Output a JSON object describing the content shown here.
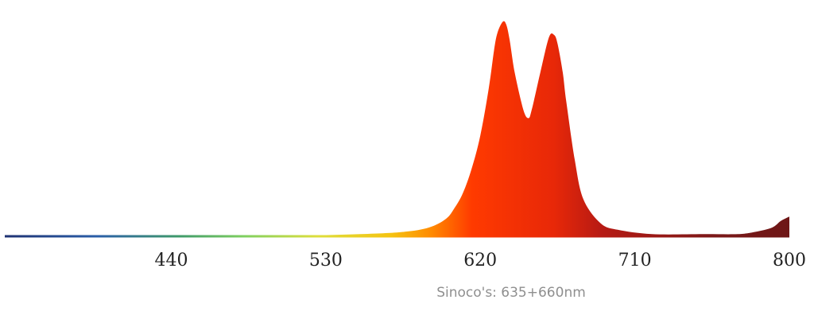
{
  "chart_data": {
    "type": "area",
    "title": "",
    "caption": "Sinoco's: 635+660nm",
    "xlabel": "",
    "ylabel": "",
    "xlim": [
      343,
      800
    ],
    "ylim": [
      0,
      1
    ],
    "grid": false,
    "legend": "none",
    "x_ticks": [
      440,
      530,
      620,
      710,
      800
    ],
    "x_tick_labels": [
      "440",
      "530",
      "620",
      "710",
      "800"
    ],
    "series": [
      {
        "x": [
          343,
          400,
          450,
          500,
          550,
          575,
          590,
          600,
          605,
          610,
          615,
          620,
          625,
          628,
          630,
          633,
          635,
          637,
          640,
          645,
          648,
          650,
          655,
          660,
          663,
          665,
          668,
          670,
          675,
          680,
          690,
          700,
          720,
          750,
          770,
          780,
          790,
          795,
          800
        ],
        "y": [
          0.0,
          0.0,
          0.0,
          0.0,
          0.01,
          0.02,
          0.04,
          0.08,
          0.13,
          0.2,
          0.31,
          0.46,
          0.68,
          0.85,
          0.93,
          0.98,
          0.97,
          0.9,
          0.75,
          0.58,
          0.54,
          0.58,
          0.75,
          0.91,
          0.92,
          0.88,
          0.75,
          0.62,
          0.35,
          0.17,
          0.06,
          0.03,
          0.01,
          0.01,
          0.01,
          0.02,
          0.04,
          0.07,
          0.09
        ]
      }
    ]
  },
  "colors": {
    "background": "#ffffff",
    "tick_text": "#222222",
    "caption_text": "#8f8f8f",
    "spectrum_stops": [
      "#1e3070",
      "#2a5ea8",
      "#3f9a6a",
      "#7fd060",
      "#dede3c",
      "#f5c412",
      "#ff8a00",
      "#ff3a00",
      "#e82808",
      "#b61a14",
      "#7a1818",
      "#6a1616"
    ]
  }
}
